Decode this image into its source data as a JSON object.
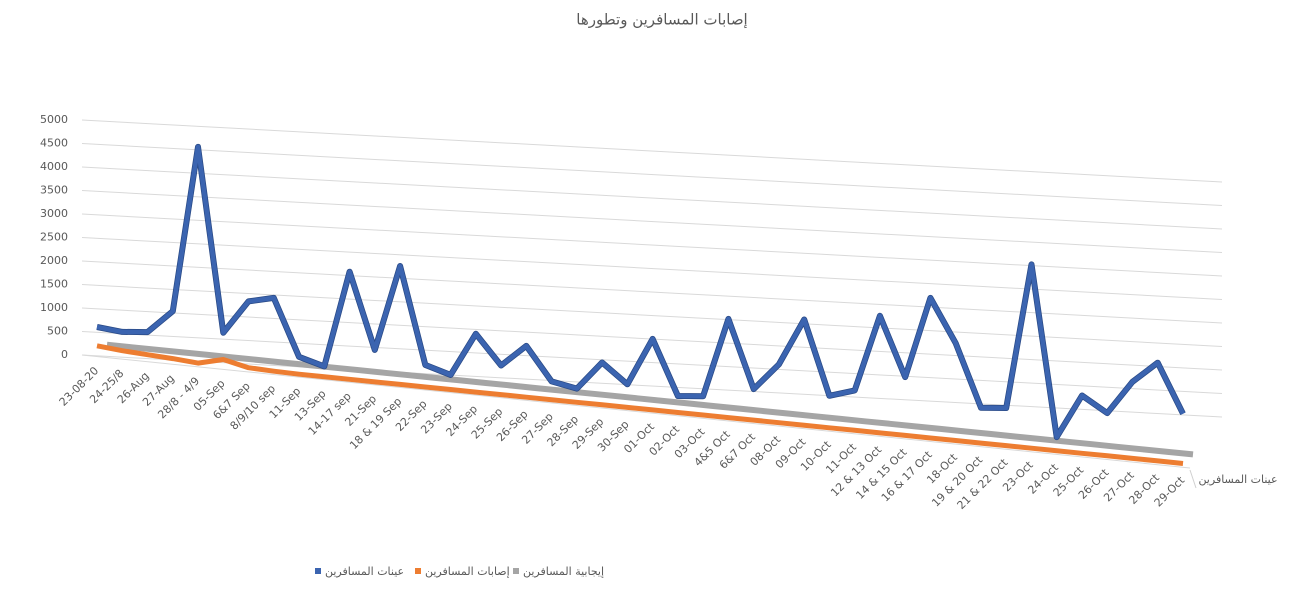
{
  "chart_data": {
    "type": "line3d",
    "title": "إصابات المسافرين وتطورها",
    "categories": [
      "23-08-20",
      "24-25/8",
      "26-Aug",
      "27-Aug",
      "28/8 - 4/9",
      "05-Sep",
      "6&7 Sep",
      "8/9/10 sep",
      "11-Sep",
      "13-Sep",
      "14-17 sep",
      "21-Sep",
      "18 & 19 Sep",
      "22-Sep",
      "23-Sep",
      "24-Sep",
      "25-Sep",
      "26-Sep",
      "27-Sep",
      "28-Sep",
      "29-Sep",
      "30-Sep",
      "01-Oct",
      "02-Oct",
      "03-Oct",
      "4&5 Oct",
      "6&7 Oct",
      "08-Oct",
      "09-Oct",
      "10-Oct",
      "11-Oct",
      "12 & 13 Oct",
      "14 & 15 Oct",
      "16 & 17 Oct",
      "18-Oct",
      "19 & 20 Oct",
      "21 & 22 Oct",
      "23-Oct",
      "24-Oct",
      "25-Oct",
      "26-Oct",
      "27-Oct",
      "28-Oct",
      "29-Oct"
    ],
    "series": [
      {
        "name": "عينات المسافرين",
        "color": "#3b64b0",
        "values": [
          600,
          550,
          600,
          1100,
          4650,
          750,
          1470,
          1600,
          400,
          250,
          2320,
          710,
          2550,
          500,
          340,
          1270,
          650,
          1120,
          420,
          320,
          930,
          520,
          1540,
          380,
          430,
          2130,
          690,
          1270,
          2280,
          710,
          880,
          2520,
          1270,
          3010,
          2100,
          780,
          830,
          3940,
          320,
          1260,
          940,
          1660,
          2120,
          1090
        ]
      },
      {
        "name": "إصابات المسافرين",
        "color": "#ed7d31",
        "values": [
          200,
          150,
          120,
          90,
          50,
          180,
          60,
          40,
          30,
          30,
          30,
          30,
          30,
          30,
          30,
          30,
          30,
          30,
          30,
          30,
          30,
          30,
          30,
          30,
          30,
          30,
          30,
          30,
          30,
          30,
          30,
          30,
          30,
          30,
          30,
          30,
          30,
          30,
          30,
          30,
          30,
          30,
          30,
          30
        ]
      },
      {
        "name": "إيجابية المسافرين",
        "color": "#a5a5a5",
        "values": [
          10,
          10,
          10,
          10,
          10,
          10,
          10,
          10,
          10,
          10,
          10,
          10,
          10,
          10,
          10,
          10,
          10,
          10,
          10,
          10,
          10,
          10,
          10,
          10,
          10,
          10,
          10,
          10,
          10,
          10,
          10,
          10,
          10,
          10,
          10,
          10,
          10,
          10,
          10,
          10,
          10,
          10,
          10,
          10
        ]
      }
    ],
    "ylim": [
      0,
      5000
    ],
    "yticks": [
      0,
      500,
      1000,
      1500,
      2000,
      2500,
      3000,
      3500,
      4000,
      4500,
      5000
    ],
    "grid": true,
    "legend": "bottom"
  }
}
